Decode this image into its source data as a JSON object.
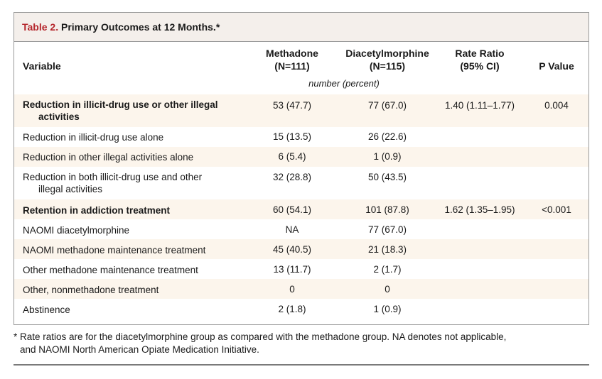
{
  "table": {
    "label": "Table 2.",
    "title": "Primary Outcomes at 12 Months.*",
    "headers": {
      "variable": "Variable",
      "methadone_line1": "Methadone",
      "methadone_line2": "(N=111)",
      "diacetyl_line1": "Diacetylmorphine",
      "diacetyl_line2": "(N=115)",
      "ratio_line1": "Rate Ratio",
      "ratio_line2": "(95% CI)",
      "pvalue": "P Value"
    },
    "units": "number (percent)",
    "rows": [
      {
        "var1": "Reduction in illicit-drug use or other illegal",
        "var2": "activities",
        "methadone": "53 (47.7)",
        "diacetyl": "77 (67.0)",
        "ratio": "1.40 (1.11–1.77)",
        "p": "0.004"
      },
      {
        "var1": "Reduction in illicit-drug use alone",
        "var2": "",
        "methadone": "15 (13.5)",
        "diacetyl": "26 (22.6)",
        "ratio": "",
        "p": ""
      },
      {
        "var1": "Reduction in other illegal activities alone",
        "var2": "",
        "methadone": "6 (5.4)",
        "diacetyl": "1 (0.9)",
        "ratio": "",
        "p": ""
      },
      {
        "var1": "Reduction in both illicit-drug use and other",
        "var2": "illegal activities",
        "methadone": "32 (28.8)",
        "diacetyl": "50 (43.5)",
        "ratio": "",
        "p": ""
      },
      {
        "var1": "Retention in addiction treatment",
        "var2": "",
        "methadone": "60 (54.1)",
        "diacetyl": "101 (87.8)",
        "ratio": "1.62 (1.35–1.95)",
        "p": "<0.001"
      },
      {
        "var1": "NAOMI diacetylmorphine",
        "var2": "",
        "methadone": "NA",
        "diacetyl": "77 (67.0)",
        "ratio": "",
        "p": ""
      },
      {
        "var1": "NAOMI methadone maintenance treatment",
        "var2": "",
        "methadone": "45 (40.5)",
        "diacetyl": "21 (18.3)",
        "ratio": "",
        "p": ""
      },
      {
        "var1": "Other methadone maintenance treatment",
        "var2": "",
        "methadone": "13 (11.7)",
        "diacetyl": "2 (1.7)",
        "ratio": "",
        "p": ""
      },
      {
        "var1": "Other, nonmethadone treatment",
        "var2": "",
        "methadone": "0",
        "diacetyl": "0",
        "ratio": "",
        "p": ""
      },
      {
        "var1": "Abstinence",
        "var2": "",
        "methadone": "2 (1.8)",
        "diacetyl": "1 (0.9)",
        "ratio": "",
        "p": ""
      }
    ],
    "footnote_line1": "* Rate ratios are for the diacetylmorphine group as compared with the methadone group. NA denotes not applicable,",
    "footnote_line2": "and NAOMI North American Opiate Medication Initiative.",
    "colors": {
      "label": "#b5262c",
      "title_bg": "#f4efeb",
      "shade": "#fcf5ec"
    }
  }
}
